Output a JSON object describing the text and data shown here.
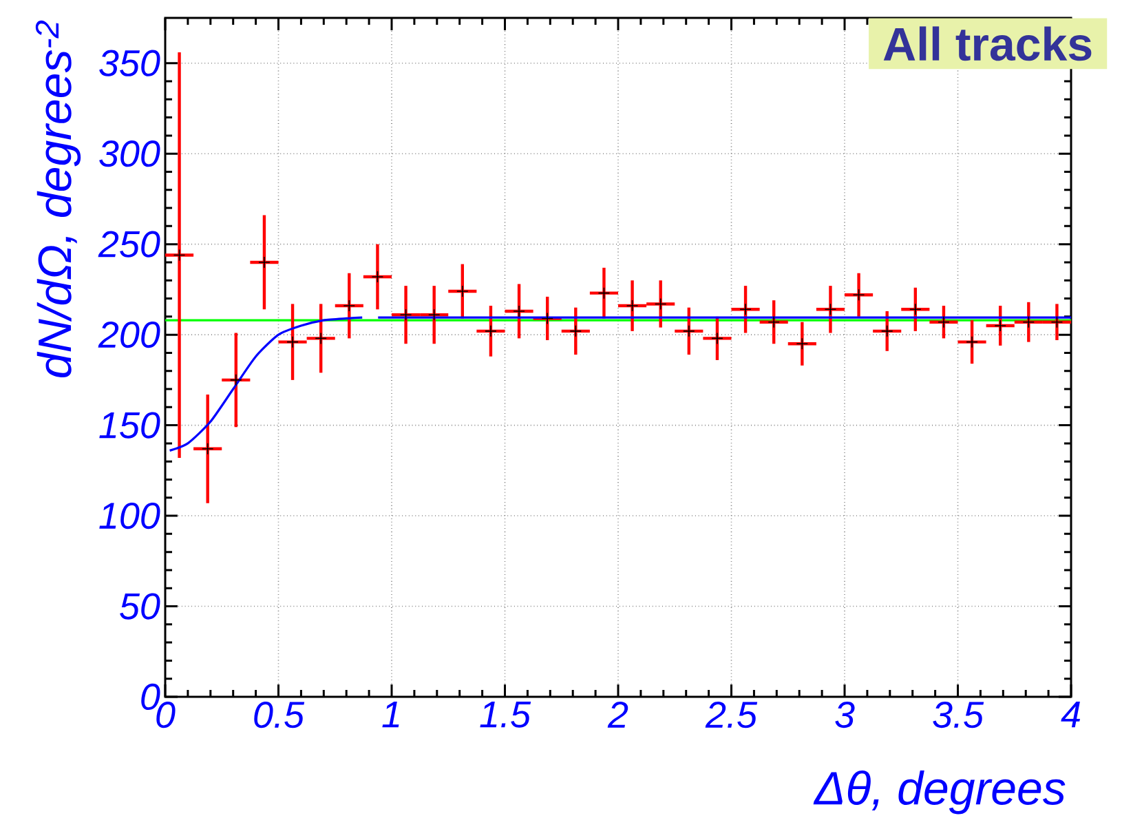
{
  "chart_data": {
    "type": "scatter",
    "xlabel": "Δθ, degrees",
    "ylabel": "dN/dΩ, degrees$^{-2}$",
    "annotations": [
      "All tracks"
    ],
    "xlim": [
      0,
      4
    ],
    "ylim": [
      0,
      375
    ],
    "xticks": [
      0,
      0.5,
      1,
      1.5,
      2,
      2.5,
      3,
      3.5,
      4
    ],
    "yticks": [
      0,
      50,
      100,
      150,
      200,
      250,
      300,
      350
    ],
    "grid": true,
    "series": [
      {
        "color": "#000000",
        "marker": "cross",
        "x": [
          0.0625,
          0.1875,
          0.3125,
          0.4375,
          0.5625,
          0.6875,
          0.8125,
          0.9375,
          1.0625,
          1.1875,
          1.3125,
          1.4375,
          1.5625,
          1.6875,
          1.8125,
          1.9375,
          2.0625,
          2.1875,
          2.3125,
          2.4375,
          2.5625,
          2.6875,
          2.8125,
          2.9375,
          3.0625,
          3.1875,
          3.3125,
          3.4375,
          3.5625,
          3.6875,
          3.8125,
          3.9375
        ],
        "values": [
          244,
          137,
          175,
          240,
          196,
          198,
          216,
          232,
          211,
          211,
          224,
          202,
          213,
          209,
          202,
          223,
          216,
          217,
          202,
          198,
          214,
          207,
          195,
          214,
          222,
          202,
          214,
          207,
          196,
          205,
          207,
          207
        ],
        "errors": [
          112,
          30,
          26,
          26,
          21,
          19,
          18,
          18,
          16,
          16,
          15,
          14,
          15,
          12,
          13,
          14,
          14,
          13,
          13,
          12,
          13,
          12,
          12,
          13,
          12,
          11,
          12,
          9,
          12,
          11,
          11,
          10
        ],
        "xerrors": [
          0.0625,
          0.0625,
          0.0625,
          0.0625,
          0.0625,
          0.0625,
          0.0625,
          0.0625,
          0.0625,
          0.0625,
          0.0625,
          0.0625,
          0.0625,
          0.0625,
          0.0625,
          0.0625,
          0.0625,
          0.0625,
          0.0625,
          0.0625,
          0.0625,
          0.0625,
          0.0625,
          0.0625,
          0.0625,
          0.0625,
          0.0625,
          0.0625,
          0.0625,
          0.0625,
          0.0625,
          0.0625
        ]
      },
      {
        "type": "line",
        "color": "#0000ff",
        "line_style": "solid",
        "x": [
          0.02,
          0.1,
          0.2,
          0.3,
          0.4,
          0.5,
          0.6,
          0.7,
          0.8,
          0.87,
          0.9,
          0.94,
          4
        ],
        "values": [
          136,
          140,
          152,
          170,
          188,
          200,
          205,
          208,
          209,
          209.5,
          null,
          209.5,
          209.5
        ]
      }
    ],
    "ref_lines": [
      {
        "axis": "y",
        "value": 208,
        "color": "#00ff00"
      }
    ]
  }
}
